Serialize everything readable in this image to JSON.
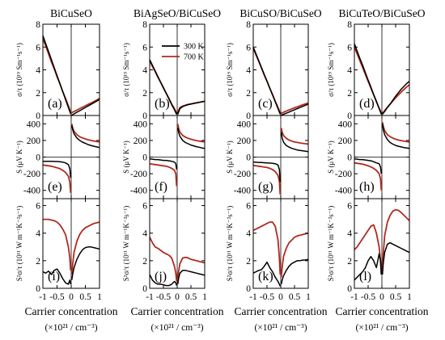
{
  "figure": {
    "columns": [
      "BiCuSeO",
      "BiAgSeO/BiCuSeO",
      "BiCuSO/BiCuSeO",
      "BiCuTeO/BiCuSeO"
    ],
    "ylabels": {
      "sigma": "σ/τ (10¹⁹ Sm⁻¹s⁻¹)",
      "seebeck": "S (μV K⁻¹)",
      "pf": "S²σ/τ (10¹¹ W m⁻¹K⁻²s⁻¹)"
    },
    "xlabel_line1": "Carrier concentration",
    "xlabel_line2": "(×10²¹ / cm⁻³)",
    "legend": [
      "300 K",
      "700 K"
    ],
    "panel_letters": [
      [
        "(a)",
        "(e)",
        "(i)"
      ],
      [
        "(b)",
        "(f)",
        "(j)"
      ],
      [
        "(c)",
        "(g)",
        "(k)"
      ],
      [
        "(d)",
        "(h)",
        "(l)"
      ]
    ]
  },
  "chart_data": {
    "type": "line",
    "title": "",
    "xlabel": "Carrier concentration (×10²¹ / cm⁻³)",
    "x": [
      -1.0,
      -0.9,
      -0.8,
      -0.7,
      -0.6,
      -0.5,
      -0.4,
      -0.3,
      -0.2,
      -0.1,
      -0.05,
      -0.02,
      0.0,
      0.02,
      0.05,
      0.1,
      0.2,
      0.3,
      0.4,
      0.5,
      0.6,
      0.7,
      0.8,
      0.9,
      1.0
    ],
    "xlim": [
      -1,
      1
    ],
    "xticks": [
      -1,
      -0.5,
      0,
      0.5,
      1
    ],
    "xtick_labels": [
      "-1",
      "-0.5",
      "0",
      "0.5",
      "1"
    ],
    "rows": [
      {
        "key": "sigma",
        "ylim": [
          0,
          8
        ],
        "yticks": [
          0,
          2,
          4,
          6,
          8
        ]
      },
      {
        "key": "seebeck",
        "ylim": [
          -500,
          500
        ],
        "yticks": [
          -400,
          -200,
          0,
          200,
          400
        ]
      },
      {
        "key": "pf",
        "ylim": [
          0,
          6.5
        ],
        "yticks": [
          0,
          2,
          4,
          6
        ]
      }
    ],
    "series_colors": {
      "300 K": "#000000",
      "700 K": "#b22a1e"
    },
    "legend_position": "top-right of panel (b)",
    "panels": [
      {
        "column": "BiCuSeO",
        "sigma": {
          "300 K": [
            7.0,
            6.3,
            5.6,
            4.9,
            4.2,
            3.5,
            2.8,
            2.1,
            1.4,
            0.7,
            0.35,
            0.14,
            0.0,
            0.03,
            0.07,
            0.14,
            0.28,
            0.42,
            0.56,
            0.7,
            0.84,
            0.98,
            1.12,
            1.26,
            1.4
          ],
          "700 K": [
            6.7,
            6.1,
            5.4,
            4.7,
            4.1,
            3.4,
            2.8,
            2.1,
            1.5,
            0.85,
            0.5,
            0.3,
            0.2,
            0.24,
            0.28,
            0.35,
            0.47,
            0.6,
            0.72,
            0.85,
            0.98,
            1.1,
            1.22,
            1.35,
            1.5
          ]
        },
        "seebeck": {
          "300 K": [
            -50,
            -50,
            -50,
            -51,
            -52,
            -53,
            -55,
            -60,
            -70,
            -90,
            -140,
            -250,
            0,
            380,
            330,
            280,
            230,
            200,
            180,
            165,
            150,
            140,
            130,
            122,
            115
          ],
          "700 K": [
            -95,
            -100,
            -105,
            -110,
            -118,
            -128,
            -140,
            -158,
            -185,
            -230,
            -300,
            -430,
            0,
            400,
            350,
            310,
            270,
            245,
            230,
            218,
            208,
            200,
            193,
            187,
            182
          ]
        },
        "pf": {
          "300 K": [
            1.2,
            1.1,
            1.25,
            1.0,
            1.3,
            1.4,
            1.1,
            0.7,
            0.4,
            0.3,
            0.6,
            0.3,
            0.05,
            0.6,
            1.0,
            1.5,
            2.1,
            2.5,
            2.8,
            2.95,
            3.0,
            3.0,
            2.95,
            2.9,
            2.85
          ],
          "700 K": [
            5.0,
            5.0,
            5.0,
            4.95,
            4.9,
            4.8,
            4.6,
            4.3,
            3.9,
            3.0,
            2.2,
            1.3,
            0.3,
            1.0,
            1.7,
            2.6,
            3.4,
            3.9,
            4.2,
            4.4,
            4.5,
            4.6,
            4.7,
            4.75,
            4.8
          ]
        }
      },
      {
        "column": "BiAgSeO/BiCuSeO",
        "sigma": {
          "300 K": [
            4.9,
            4.4,
            3.9,
            3.4,
            2.9,
            2.45,
            1.95,
            1.45,
            0.95,
            0.5,
            0.25,
            0.1,
            0.0,
            0.1,
            0.3,
            0.6,
            0.78,
            0.88,
            0.95,
            1.0,
            1.05,
            1.1,
            1.15,
            1.2,
            1.25
          ],
          "700 K": [
            4.8,
            4.3,
            3.85,
            3.35,
            2.9,
            2.4,
            1.95,
            1.5,
            1.0,
            0.6,
            0.35,
            0.2,
            0.1,
            0.25,
            0.45,
            0.7,
            0.82,
            0.9,
            0.97,
            1.02,
            1.07,
            1.12,
            1.16,
            1.2,
            1.24
          ]
        },
        "seebeck": {
          "300 K": [
            -20,
            -25,
            -30,
            -30,
            -35,
            -40,
            -40,
            -45,
            -50,
            -60,
            -80,
            -150,
            0,
            350,
            300,
            250,
            200,
            175,
            160,
            145,
            135,
            125,
            118,
            110,
            105
          ],
          "700 K": [
            -80,
            -85,
            -90,
            -95,
            -100,
            -105,
            -110,
            -120,
            -135,
            -160,
            -200,
            -350,
            0,
            400,
            350,
            300,
            260,
            240,
            225,
            215,
            205,
            198,
            192,
            187,
            182
          ]
        },
        "pf": {
          "300 K": [
            1.0,
            0.6,
            0.4,
            0.3,
            0.3,
            0.25,
            0.2,
            0.2,
            0.3,
            0.5,
            0.4,
            0.2,
            0.05,
            0.3,
            0.7,
            1.1,
            1.3,
            1.3,
            1.25,
            1.2,
            1.15,
            1.1,
            1.05,
            1.0,
            0.95
          ],
          "700 K": [
            3.7,
            3.3,
            3.0,
            2.9,
            2.75,
            2.6,
            2.5,
            2.4,
            2.2,
            1.6,
            1.1,
            0.5,
            0.1,
            0.6,
            1.2,
            1.8,
            2.2,
            2.25,
            2.2,
            2.1,
            2.05,
            2.0,
            1.95,
            1.9,
            1.85
          ]
        }
      },
      {
        "column": "BiCuSO/BiCuSeO",
        "sigma": {
          "300 K": [
            6.0,
            5.4,
            4.8,
            4.2,
            3.6,
            3.0,
            2.4,
            1.8,
            1.2,
            0.6,
            0.3,
            0.12,
            0.0,
            0.03,
            0.06,
            0.1,
            0.2,
            0.3,
            0.4,
            0.5,
            0.6,
            0.7,
            0.8,
            0.9,
            1.0
          ],
          "700 K": [
            5.9,
            5.3,
            4.75,
            4.15,
            3.55,
            3.0,
            2.4,
            1.85,
            1.25,
            0.7,
            0.4,
            0.22,
            0.15,
            0.18,
            0.22,
            0.28,
            0.38,
            0.48,
            0.58,
            0.67,
            0.76,
            0.85,
            0.94,
            1.02,
            1.1
          ]
        },
        "seebeck": {
          "300 K": [
            -60,
            -62,
            -64,
            -66,
            -68,
            -70,
            -72,
            -75,
            -80,
            -95,
            -150,
            -300,
            0,
            300,
            230,
            180,
            140,
            120,
            105,
            95,
            85,
            80,
            75,
            70,
            65
          ],
          "700 K": [
            -100,
            -105,
            -110,
            -115,
            -120,
            -125,
            -135,
            -150,
            -175,
            -220,
            -290,
            -450,
            0,
            350,
            300,
            260,
            225,
            205,
            192,
            183,
            176,
            170,
            165,
            160,
            156
          ]
        },
        "pf": {
          "300 K": [
            1.1,
            1.2,
            1.3,
            1.35,
            1.6,
            1.9,
            1.5,
            1.2,
            0.8,
            0.5,
            0.3,
            0.15,
            0.05,
            0.3,
            0.6,
            0.9,
            1.3,
            1.6,
            1.8,
            1.9,
            2.0,
            2.0,
            2.05,
            2.05,
            2.1
          ],
          "700 K": [
            4.2,
            4.3,
            4.4,
            4.5,
            4.6,
            4.7,
            4.8,
            4.8,
            4.5,
            3.5,
            2.2,
            1.0,
            0.2,
            0.8,
            1.5,
            2.3,
            2.9,
            3.3,
            3.5,
            3.7,
            3.8,
            3.85,
            3.9,
            3.95,
            4.0
          ]
        }
      },
      {
        "column": "BiCuTeO/BiCuSeO",
        "sigma": {
          "300 K": [
            6.3,
            5.65,
            5.0,
            4.4,
            3.75,
            3.1,
            2.5,
            1.85,
            1.25,
            0.6,
            0.3,
            0.1,
            0.0,
            0.1,
            0.2,
            0.35,
            0.7,
            1.0,
            1.35,
            1.7,
            2.0,
            2.3,
            2.55,
            2.8,
            3.0
          ],
          "700 K": [
            6.0,
            5.4,
            4.8,
            4.2,
            3.6,
            3.0,
            2.4,
            1.8,
            1.2,
            0.65,
            0.38,
            0.2,
            0.1,
            0.18,
            0.28,
            0.42,
            0.72,
            1.0,
            1.28,
            1.55,
            1.8,
            2.05,
            2.28,
            2.5,
            2.7
          ]
        },
        "seebeck": {
          "300 K": [
            -20,
            -25,
            -30,
            -30,
            -35,
            -40,
            -45,
            -55,
            -70,
            -80,
            -120,
            -200,
            0,
            400,
            330,
            270,
            210,
            175,
            155,
            140,
            130,
            122,
            115,
            110,
            105
          ],
          "700 K": [
            -70,
            -75,
            -80,
            -85,
            -95,
            -105,
            -118,
            -135,
            -160,
            -200,
            -260,
            -400,
            0,
            420,
            370,
            320,
            270,
            245,
            228,
            215,
            205,
            198,
            192,
            186,
            181
          ]
        },
        "pf": {
          "300 K": [
            0.6,
            0.8,
            1.0,
            1.2,
            1.5,
            2.0,
            2.3,
            2.0,
            1.5,
            2.5,
            2.0,
            1.0,
            0.1,
            1.0,
            1.8,
            2.6,
            3.2,
            3.3,
            3.2,
            3.1,
            3.0,
            2.9,
            2.8,
            2.7,
            2.6
          ],
          "700 K": [
            2.8,
            3.0,
            3.3,
            3.6,
            3.9,
            4.2,
            4.5,
            4.6,
            4.0,
            3.0,
            2.0,
            1.0,
            0.2,
            1.3,
            2.5,
            3.8,
            4.8,
            5.3,
            5.6,
            5.7,
            5.65,
            5.5,
            5.3,
            5.1,
            4.9
          ]
        }
      }
    ]
  }
}
